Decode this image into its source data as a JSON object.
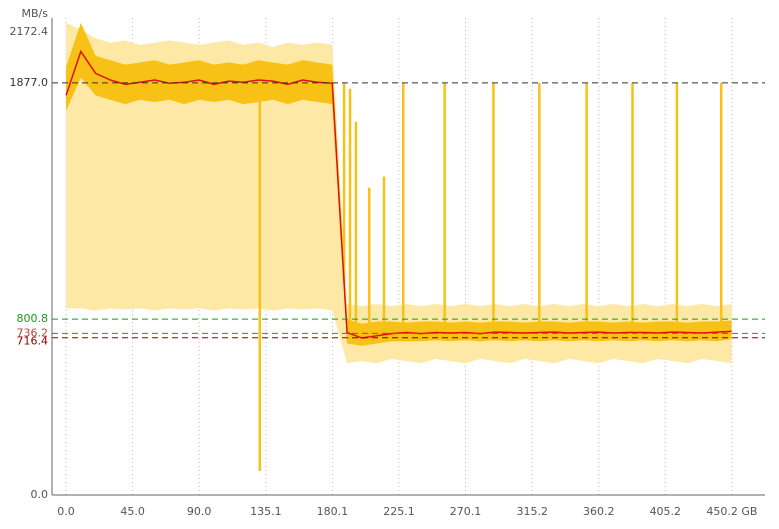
{
  "chart_data": {
    "type": "line",
    "y_label": "MB/s",
    "xlim": [
      -9.5,
      472.6
    ],
    "xticks": [
      {
        "value": 0,
        "label": "0.0"
      },
      {
        "value": 45,
        "label": "45.0"
      },
      {
        "value": 90,
        "label": "90.0"
      },
      135.1,
      180.1,
      225.1,
      270.1,
      315.2,
      360.2,
      405.2,
      {
        "value": 450.2,
        "label": "450.2 GB"
      }
    ],
    "ylim": [
      0,
      2172.4
    ],
    "yticks": [
      {
        "value": 0,
        "label": "0.0"
      },
      2172.4
    ],
    "grid": true,
    "x": [
      0,
      10,
      20,
      30,
      40,
      50,
      60,
      70,
      80,
      90,
      100,
      110,
      120,
      130,
      140,
      150,
      160,
      170,
      180,
      190,
      200,
      210,
      220,
      230,
      240,
      250,
      260,
      270,
      280,
      290,
      300,
      310,
      320,
      330,
      340,
      350,
      360,
      370,
      380,
      390,
      400,
      410,
      420,
      430,
      440,
      450
    ],
    "bands": [
      {
        "color": "#fde8a6",
        "upper": [
          2150,
          2120,
          2080,
          2060,
          2070,
          2050,
          2060,
          2070,
          2060,
          2050,
          2060,
          2070,
          2050,
          2060,
          2040,
          2060,
          2050,
          2060,
          2050,
          870,
          860,
          870,
          860,
          870,
          860,
          870,
          860,
          870,
          860,
          870,
          860,
          870,
          860,
          870,
          860,
          870,
          860,
          870,
          860,
          870,
          860,
          870,
          860,
          870,
          860,
          870
        ],
        "lower": [
          850,
          850,
          840,
          850,
          845,
          850,
          840,
          850,
          845,
          850,
          840,
          850,
          845,
          850,
          840,
          850,
          845,
          850,
          840,
          600,
          610,
          600,
          620,
          610,
          600,
          620,
          610,
          600,
          620,
          610,
          600,
          620,
          610,
          600,
          620,
          610,
          600,
          620,
          610,
          600,
          620,
          610,
          600,
          620,
          610,
          600
        ]
      },
      {
        "color": "#f7c215",
        "upper": [
          1950,
          2150,
          2000,
          1980,
          1960,
          1970,
          1980,
          1960,
          1970,
          1980,
          1960,
          1970,
          1960,
          1980,
          1970,
          1960,
          1980,
          1970,
          1960,
          800,
          780,
          790,
          790,
          785,
          790,
          790,
          785,
          790,
          785,
          790,
          790,
          785,
          790,
          790,
          785,
          790,
          790,
          785,
          790,
          785,
          790,
          790,
          785,
          790,
          790,
          795
        ],
        "lower": [
          1750,
          1900,
          1820,
          1800,
          1780,
          1800,
          1790,
          1800,
          1780,
          1800,
          1790,
          1800,
          1780,
          1790,
          1800,
          1780,
          1800,
          1790,
          1780,
          690,
          680,
          690,
          700,
          700,
          700,
          705,
          700,
          705,
          700,
          705,
          700,
          705,
          700,
          705,
          700,
          705,
          700,
          705,
          700,
          705,
          700,
          705,
          700,
          705,
          700,
          710
        ]
      }
    ],
    "series": [
      {
        "color": "#e01010",
        "values": [
          1820,
          2020,
          1920,
          1890,
          1870,
          1880,
          1890,
          1875,
          1880,
          1890,
          1870,
          1885,
          1880,
          1890,
          1885,
          1870,
          1890,
          1880,
          1875,
          740,
          715,
          725,
          735,
          740,
          735,
          740,
          738,
          740,
          735,
          742,
          740,
          738,
          740,
          742,
          738,
          740,
          742,
          738,
          740,
          740,
          738,
          742,
          740,
          738,
          742,
          745
        ]
      }
    ],
    "spikes": {
      "color": "#f7c215",
      "x": [
        131,
        188,
        192,
        196,
        205,
        215,
        228,
        256,
        289,
        320,
        352,
        383,
        413,
        443
      ],
      "values": [
        110,
        1877,
        1850,
        1700,
        1400,
        1450,
        1877,
        1877,
        1877,
        1877,
        1877,
        1877,
        1877,
        1877
      ]
    },
    "reference_lines": [
      {
        "value": 1877,
        "label": "1877.0",
        "color": "#333333"
      },
      {
        "value": 800.8,
        "color": "#1a9a1a"
      },
      {
        "value": 736.2,
        "color": "#c04040"
      },
      {
        "value": 716.4,
        "color": "#8b0000"
      }
    ]
  }
}
